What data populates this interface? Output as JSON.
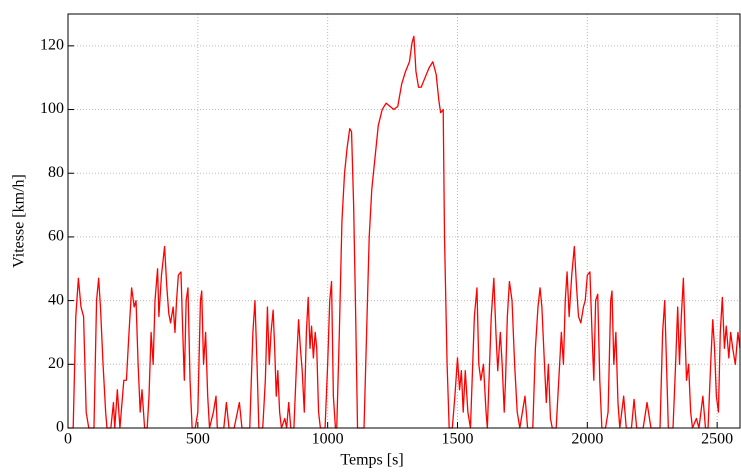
{
  "chart_data": {
    "type": "line",
    "xlabel": "Temps [s]",
    "ylabel": "Vitesse [km/h]",
    "xlim": [
      0,
      2588
    ],
    "ylim": [
      0,
      130
    ],
    "xticks": [
      0,
      500,
      1000,
      1500,
      2000,
      2500
    ],
    "yticks": [
      0,
      20,
      40,
      60,
      80,
      100,
      120
    ],
    "grid": true,
    "x": [
      0,
      20,
      30,
      40,
      50,
      60,
      70,
      80,
      100,
      110,
      118,
      125,
      135,
      145,
      150,
      165,
      175,
      180,
      190,
      200,
      215,
      225,
      235,
      245,
      255,
      262,
      270,
      278,
      285,
      295,
      305,
      312,
      320,
      328,
      335,
      345,
      350,
      360,
      372,
      380,
      388,
      395,
      405,
      412,
      418,
      425,
      435,
      442,
      448,
      455,
      462,
      470,
      478,
      490,
      500,
      510,
      515,
      522,
      530,
      538,
      545,
      560,
      570,
      575,
      590,
      600,
      610,
      620,
      640,
      660,
      670,
      700,
      712,
      720,
      728,
      735,
      750,
      760,
      768,
      775,
      782,
      790,
      796,
      802,
      808,
      815,
      822,
      835,
      842,
      850,
      858,
      870,
      880,
      888,
      895,
      902,
      910,
      918,
      925,
      932,
      938,
      945,
      952,
      958,
      965,
      972,
      990,
      1000,
      1008,
      1015,
      1022,
      1030,
      1035,
      1045,
      1055,
      1065,
      1075,
      1085,
      1092,
      1100,
      1108,
      1115,
      1140,
      1150,
      1160,
      1170,
      1180,
      1195,
      1210,
      1225,
      1240,
      1255,
      1270,
      1285,
      1300,
      1315,
      1325,
      1332,
      1340,
      1350,
      1360,
      1375,
      1390,
      1405,
      1418,
      1428,
      1435,
      1445,
      1450,
      1460,
      1468,
      1480,
      1490,
      1500,
      1508,
      1515,
      1522,
      1530,
      1540,
      1550,
      1565,
      1575,
      1582,
      1590,
      1600,
      1610,
      1615,
      1630,
      1640,
      1648,
      1655,
      1665,
      1672,
      1680,
      1685,
      1692,
      1700,
      1710,
      1720,
      1730,
      1740,
      1760,
      1770,
      1790,
      1800,
      1810,
      1818,
      1825,
      1835,
      1842,
      1850,
      1858,
      1865,
      1880,
      1890,
      1900,
      1908,
      1915,
      1922,
      1930,
      1940,
      1950,
      1958,
      1966,
      1975,
      1985,
      1992,
      2000,
      2010,
      2018,
      2025,
      2032,
      2040,
      2048,
      2056,
      2070,
      2080,
      2090,
      2095,
      2102,
      2110,
      2118,
      2125,
      2140,
      2150,
      2170,
      2180,
      2190,
      2215,
      2230,
      2245,
      2280,
      2290,
      2298,
      2305,
      2312,
      2330,
      2340,
      2348,
      2355,
      2362,
      2370,
      2376,
      2382,
      2390,
      2398,
      2405,
      2420,
      2430,
      2445,
      2455,
      2465,
      2475,
      2483,
      2490,
      2497,
      2505,
      2512,
      2520,
      2528,
      2535,
      2545,
      2552,
      2560,
      2570,
      2580,
      2588
    ],
    "series": [
      {
        "color": "#ff0000",
        "values": [
          0,
          0,
          35,
          47,
          38,
          35,
          5,
          0,
          0,
          40,
          47,
          38,
          20,
          5,
          0,
          0,
          8,
          0,
          12,
          0,
          15,
          15,
          30,
          44,
          38,
          40,
          20,
          5,
          12,
          0,
          0,
          10,
          30,
          20,
          40,
          50,
          35,
          48,
          57,
          45,
          36,
          33,
          38,
          30,
          40,
          48,
          49,
          30,
          15,
          40,
          44,
          15,
          0,
          0,
          5,
          40,
          43,
          20,
          30,
          10,
          0,
          5,
          10,
          0,
          0,
          0,
          8,
          0,
          0,
          8,
          0,
          0,
          30,
          40,
          20,
          0,
          0,
          15,
          38,
          20,
          30,
          37,
          25,
          10,
          18,
          5,
          0,
          3,
          0,
          8,
          0,
          0,
          20,
          34,
          25,
          18,
          5,
          30,
          41,
          25,
          32,
          22,
          30,
          25,
          5,
          0,
          0,
          20,
          40,
          46,
          10,
          0,
          0,
          30,
          65,
          80,
          88,
          94,
          93,
          70,
          35,
          0,
          0,
          30,
          60,
          75,
          83,
          95,
          100,
          102,
          101,
          100,
          101,
          108,
          112,
          115,
          121,
          123,
          112,
          107,
          107,
          110,
          113,
          115,
          111,
          103,
          99,
          100,
          60,
          20,
          0,
          0,
          10,
          22,
          12,
          18,
          5,
          18,
          5,
          0,
          35,
          44,
          20,
          15,
          20,
          5,
          0,
          35,
          47,
          30,
          18,
          30,
          20,
          5,
          15,
          35,
          46,
          40,
          20,
          5,
          0,
          10,
          0,
          0,
          25,
          38,
          44,
          38,
          20,
          8,
          20,
          3,
          0,
          0,
          15,
          30,
          20,
          40,
          49,
          35,
          48,
          57,
          45,
          35,
          33,
          38,
          40,
          48,
          49,
          30,
          15,
          40,
          42,
          15,
          0,
          0,
          5,
          40,
          43,
          20,
          30,
          8,
          0,
          10,
          0,
          0,
          9,
          0,
          0,
          8,
          0,
          0,
          30,
          40,
          20,
          0,
          0,
          20,
          38,
          20,
          35,
          47,
          30,
          15,
          20,
          5,
          0,
          3,
          0,
          10,
          0,
          0,
          20,
          34,
          25,
          10,
          5,
          30,
          41,
          25,
          32,
          22,
          30,
          25,
          20,
          30,
          25
        ]
      }
    ]
  }
}
